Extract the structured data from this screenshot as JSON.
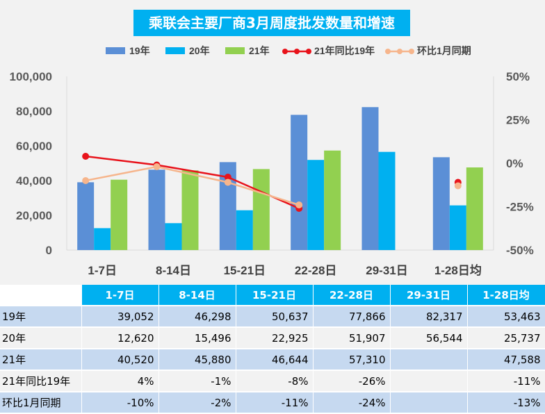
{
  "title": "乘联会主要厂商3月周度批发数量和增速",
  "chart_data": {
    "type": "bar",
    "categories": [
      "1-7日",
      "8-14日",
      "15-21日",
      "22-28日",
      "29-31日",
      "1-28日均"
    ],
    "series": [
      {
        "name": "19年",
        "kind": "bar",
        "color": "#5b8fd6",
        "values": [
          39052,
          46298,
          50637,
          77866,
          82317,
          53463
        ]
      },
      {
        "name": "20年",
        "kind": "bar",
        "color": "#00b0f0",
        "values": [
          12620,
          15496,
          22925,
          51907,
          56544,
          25737
        ]
      },
      {
        "name": "21年",
        "kind": "bar",
        "color": "#92d050",
        "values": [
          40520,
          45880,
          46644,
          57310,
          null,
          47588
        ]
      },
      {
        "name": "21年同比19年",
        "kind": "line",
        "axis": "right",
        "color": "#e8131b",
        "values": [
          4,
          -1,
          -8,
          -26,
          null,
          -11
        ]
      },
      {
        "name": "环比1月同期",
        "kind": "line",
        "axis": "right",
        "color": "#f6b58c",
        "values": [
          -10,
          -2,
          -11,
          -24,
          null,
          -13
        ]
      }
    ],
    "left_axis": {
      "ylim": [
        0,
        100000
      ],
      "ticks": [
        "0",
        "20,000",
        "40,000",
        "60,000",
        "80,000",
        "100,000"
      ]
    },
    "right_axis": {
      "ylim": [
        -50,
        50
      ],
      "ticks": [
        "-50%",
        "-25%",
        "0%",
        "25%",
        "50%"
      ]
    },
    "legend_position": "top",
    "grid": false
  },
  "table": {
    "headers": [
      "1-7日",
      "8-14日",
      "15-21日",
      "22-28日",
      "29-31日",
      "1-28日均"
    ],
    "rows": [
      {
        "label": "19年",
        "cells": [
          "39,052",
          "46,298",
          "50,637",
          "77,866",
          "82,317",
          "53,463"
        ]
      },
      {
        "label": "20年",
        "cells": [
          "12,620",
          "15,496",
          "22,925",
          "51,907",
          "56,544",
          "25,737"
        ]
      },
      {
        "label": "21年",
        "cells": [
          "40,520",
          "45,880",
          "46,644",
          "57,310",
          "",
          "47,588"
        ]
      },
      {
        "label": "21年同比19年",
        "cells": [
          "4%",
          "-1%",
          "-8%",
          "-26%",
          "",
          "-11%"
        ]
      },
      {
        "label": "环比1月同期",
        "cells": [
          "-10%",
          "-2%",
          "-11%",
          "-24%",
          "",
          "-13%"
        ]
      }
    ]
  }
}
